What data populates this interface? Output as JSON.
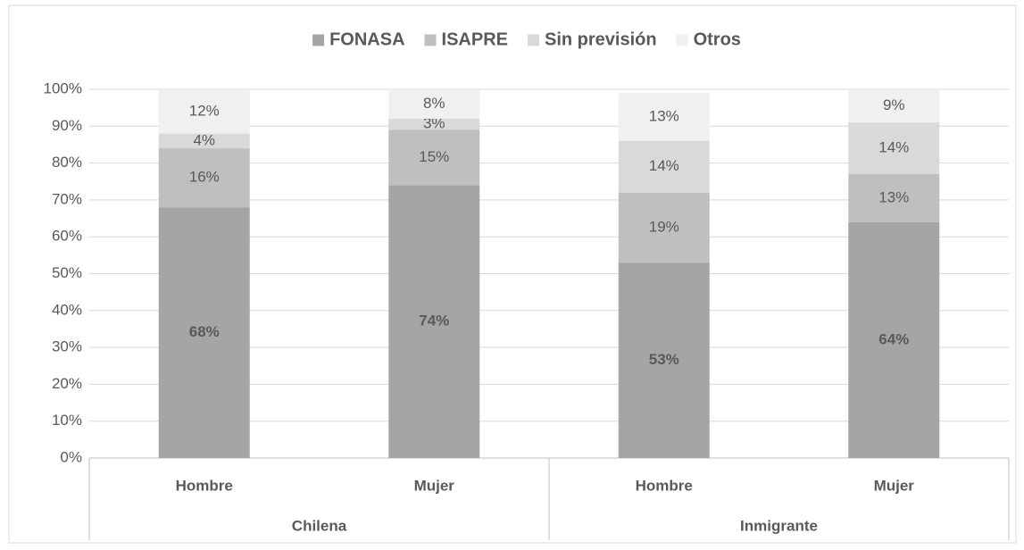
{
  "chart_data": {
    "type": "stacked_bar",
    "categories": [
      "Hombre",
      "Mujer",
      "Hombre",
      "Mujer"
    ],
    "groups": [
      "Chilena",
      "Inmigrante"
    ],
    "series": [
      {
        "name": "FONASA",
        "color": "#a5a5a5",
        "values": [
          68,
          74,
          53,
          64
        ],
        "value_labels": [
          "68%",
          "74%",
          "53%",
          "64%"
        ]
      },
      {
        "name": "ISAPRE",
        "color": "#bfbfbf",
        "values": [
          16,
          15,
          19,
          13
        ],
        "value_labels": [
          "16%",
          "15%",
          "19%",
          "13%"
        ]
      },
      {
        "name": "Sin previsión",
        "color": "#d9d9d9",
        "values": [
          4,
          3,
          14,
          14
        ],
        "value_labels": [
          "4%",
          "3%",
          "14%",
          "14%"
        ]
      },
      {
        "name": "Otros",
        "color": "#f0f0f0",
        "values": [
          12,
          8,
          13,
          9
        ],
        "value_labels": [
          "12%",
          "8%",
          "13%",
          "9%"
        ]
      }
    ],
    "ylim": [
      0,
      100
    ],
    "yticks": [
      {
        "value": 0,
        "label": "0%"
      },
      {
        "value": 10,
        "label": "10%"
      },
      {
        "value": 20,
        "label": "20%"
      },
      {
        "value": 30,
        "label": "30%"
      },
      {
        "value": 40,
        "label": "40%"
      },
      {
        "value": 50,
        "label": "50%"
      },
      {
        "value": 60,
        "label": "60%"
      },
      {
        "value": 70,
        "label": "70%"
      },
      {
        "value": 80,
        "label": "80%"
      },
      {
        "value": 90,
        "label": "90%"
      },
      {
        "value": 100,
        "label": "100%"
      }
    ],
    "grid": true,
    "legend": "top"
  }
}
